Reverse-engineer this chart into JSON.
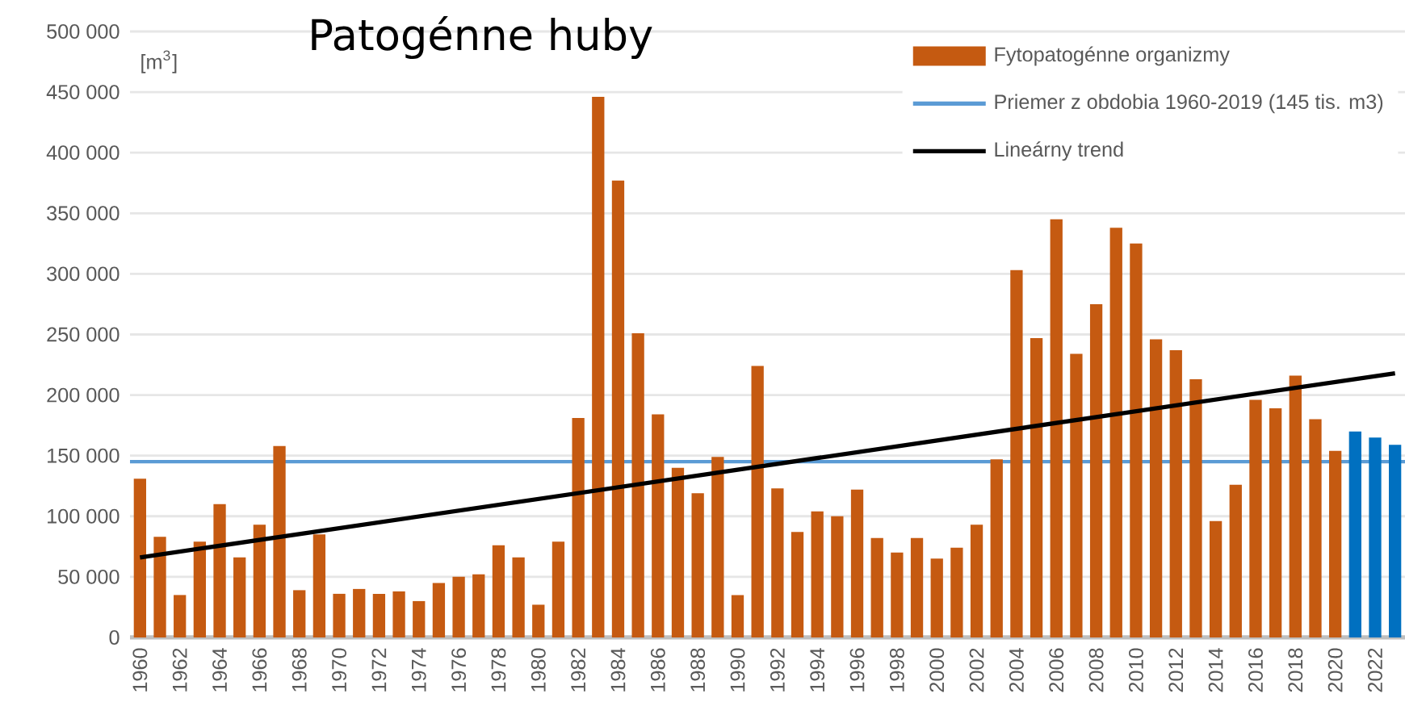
{
  "chart_data": {
    "type": "bar",
    "title": "Patogénne huby",
    "annotations": [
      "[m$^{3}$]"
    ],
    "x": [
      1960,
      1961,
      1962,
      1963,
      1964,
      1965,
      1966,
      1967,
      1968,
      1969,
      1970,
      1971,
      1972,
      1973,
      1974,
      1975,
      1976,
      1977,
      1978,
      1979,
      1980,
      1981,
      1982,
      1983,
      1984,
      1985,
      1986,
      1987,
      1988,
      1989,
      1990,
      1991,
      1992,
      1993,
      1994,
      1995,
      1996,
      1997,
      1998,
      1999,
      2000,
      2001,
      2002,
      2003,
      2004,
      2005,
      2006,
      2007,
      2008,
      2009,
      2010,
      2011,
      2012,
      2013,
      2014,
      2015,
      2016,
      2017,
      2018,
      2019,
      2020,
      2021,
      2022,
      2023
    ],
    "series": [
      {
        "name": "Fytopatogénne organizmy",
        "color": "#c55a11",
        "colors": [
          "#c55a11",
          "#c55a11",
          "#c55a11",
          "#c55a11",
          "#c55a11",
          "#c55a11",
          "#c55a11",
          "#c55a11",
          "#c55a11",
          "#c55a11",
          "#c55a11",
          "#c55a11",
          "#c55a11",
          "#c55a11",
          "#c55a11",
          "#c55a11",
          "#c55a11",
          "#c55a11",
          "#c55a11",
          "#c55a11",
          "#c55a11",
          "#c55a11",
          "#c55a11",
          "#c55a11",
          "#c55a11",
          "#c55a11",
          "#c55a11",
          "#c55a11",
          "#c55a11",
          "#c55a11",
          "#c55a11",
          "#c55a11",
          "#c55a11",
          "#c55a11",
          "#c55a11",
          "#c55a11",
          "#c55a11",
          "#c55a11",
          "#c55a11",
          "#c55a11",
          "#c55a11",
          "#c55a11",
          "#c55a11",
          "#c55a11",
          "#c55a11",
          "#c55a11",
          "#c55a11",
          "#c55a11",
          "#c55a11",
          "#c55a11",
          "#c55a11",
          "#c55a11",
          "#c55a11",
          "#c55a11",
          "#c55a11",
          "#c55a11",
          "#c55a11",
          "#c55a11",
          "#c55a11",
          "#c55a11",
          "#c55a11",
          "#0070c0",
          "#0070c0",
          "#0070c0"
        ],
        "values": [
          131000,
          83000,
          35000,
          79000,
          110000,
          66000,
          93000,
          158000,
          39000,
          85000,
          36000,
          40000,
          36000,
          38000,
          30000,
          45000,
          50000,
          52000,
          76000,
          66000,
          27000,
          79000,
          181000,
          446000,
          377000,
          251000,
          184000,
          140000,
          119000,
          149000,
          35000,
          224000,
          123000,
          87000,
          104000,
          100000,
          122000,
          82000,
          70000,
          82000,
          65000,
          74000,
          93000,
          147000,
          303000,
          247000,
          345000,
          234000,
          275000,
          338000,
          325000,
          246000,
          237000,
          213000,
          96000,
          126000,
          196000,
          189000,
          216000,
          180000,
          154000,
          170000,
          165000,
          159000
        ]
      },
      {
        "name": "Lineárny trend",
        "type": "line",
        "color": "#000000",
        "x": [
          1960,
          2023
        ],
        "values": [
          66000,
          218000
        ]
      }
    ],
    "xlim": [
      1959.5,
      2023.5
    ],
    "xticks": [
      1960,
      1962,
      1964,
      1966,
      1968,
      1970,
      1972,
      1974,
      1976,
      1978,
      1980,
      1982,
      1984,
      1986,
      1988,
      1990,
      1992,
      1994,
      1996,
      1998,
      2000,
      2002,
      2004,
      2006,
      2008,
      2010,
      2012,
      2014,
      2016,
      2018,
      2020,
      2022
    ],
    "ylim": [
      0,
      500000
    ],
    "yticks": [
      0,
      {
        "value": 50000,
        "label": "50 000"
      },
      {
        "value": 100000,
        "label": "100 000"
      },
      {
        "value": 150000,
        "label": "150 000"
      },
      {
        "value": 200000,
        "label": "200 000"
      },
      {
        "value": 250000,
        "label": "250 000"
      },
      {
        "value": 300000,
        "label": "300 000"
      },
      {
        "value": 350000,
        "label": "350 000"
      },
      {
        "value": 400000,
        "label": "400 000"
      },
      {
        "value": 450000,
        "label": "450 000"
      },
      {
        "value": 500000,
        "label": "500 000"
      }
    ],
    "ref_lines": [
      {
        "axis": "y",
        "value": 145000,
        "label": "Priemer z obdobia 1960-2019 (145 tis. m3)",
        "color": "#5b9bd5"
      }
    ],
    "grid": "y",
    "legend": "top right"
  }
}
